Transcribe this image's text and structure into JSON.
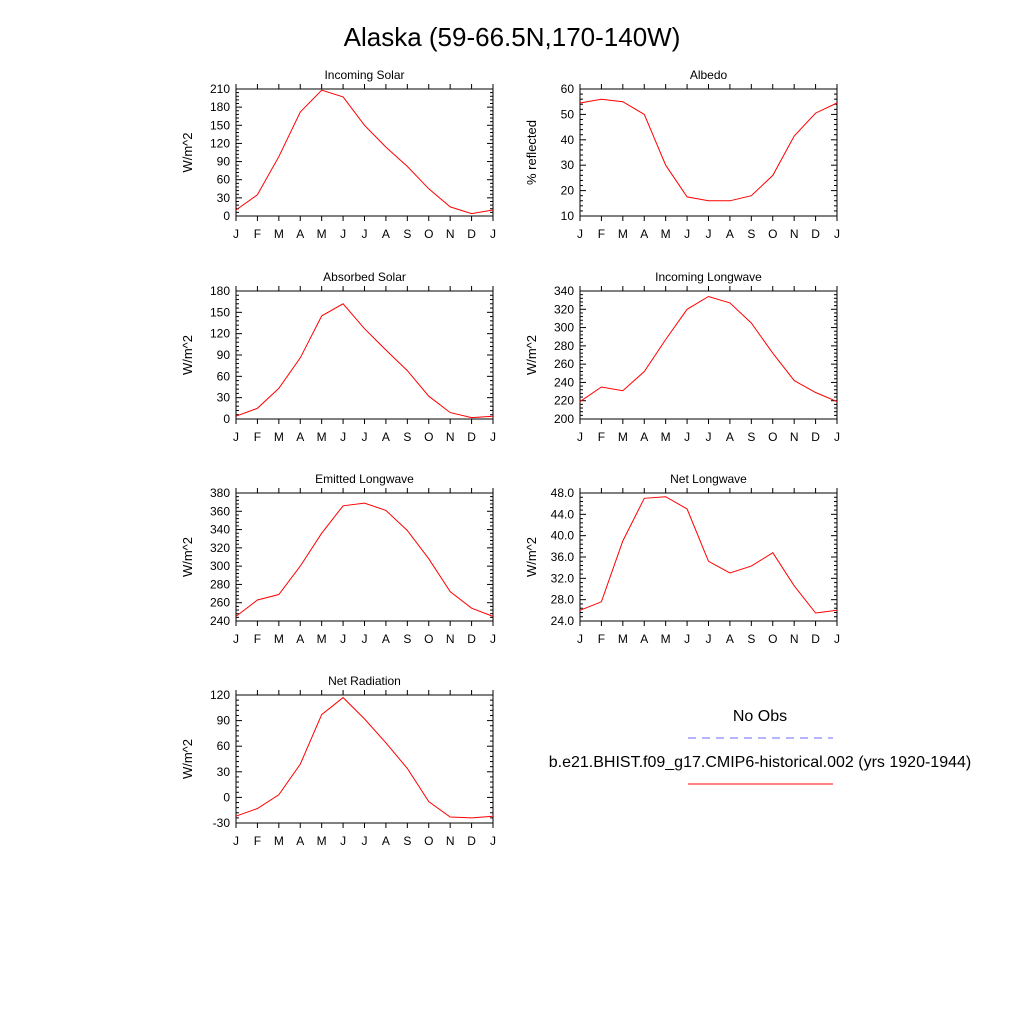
{
  "figure": {
    "title": "Alaska (59-66.5N,170-140W)",
    "legend": {
      "obs_label": "No Obs",
      "obs_color": "#6a6aff",
      "model_label": "b.e21.BHIST.f09_g17.CMIP6-historical.002 (yrs 1920-1944)",
      "model_color": "#ff0000"
    }
  },
  "chart_data": [
    {
      "type": "line",
      "title": "Incoming Solar",
      "xlabel": "",
      "ylabel": "W/m^2",
      "categories": [
        "J",
        "F",
        "M",
        "A",
        "M",
        "J",
        "J",
        "A",
        "S",
        "O",
        "N",
        "D",
        "J"
      ],
      "ylim": [
        0,
        210
      ],
      "yticks": [
        "0",
        "30",
        "60",
        "90",
        "120",
        "150",
        "180",
        "210"
      ],
      "series": [
        {
          "values": [
            10,
            35,
            98,
            172,
            208,
            197,
            150,
            114,
            82,
            45,
            15,
            4,
            10
          ]
        }
      ]
    },
    {
      "type": "line",
      "title": "Albedo",
      "xlabel": "",
      "ylabel": "% reflected",
      "categories": [
        "J",
        "F",
        "M",
        "A",
        "M",
        "J",
        "J",
        "A",
        "S",
        "O",
        "N",
        "D",
        "J"
      ],
      "ylim": [
        10,
        60
      ],
      "yticks": [
        "10",
        "20",
        "30",
        "40",
        "50",
        "60"
      ],
      "series": [
        {
          "values": [
            54.5,
            56,
            55,
            50,
            30,
            17.5,
            16,
            16,
            18,
            26,
            41.5,
            50.5,
            54.5
          ]
        }
      ]
    },
    {
      "type": "line",
      "title": "Absorbed Solar",
      "xlabel": "",
      "ylabel": "W/m^2",
      "categories": [
        "J",
        "F",
        "M",
        "A",
        "M",
        "J",
        "J",
        "A",
        "S",
        "O",
        "N",
        "D",
        "J"
      ],
      "ylim": [
        0,
        180
      ],
      "yticks": [
        "0",
        "30",
        "60",
        "90",
        "120",
        "150",
        "180"
      ],
      "series": [
        {
          "values": [
            4,
            15,
            43,
            86,
            145,
            162,
            127,
            97,
            68,
            32,
            9,
            2,
            4
          ]
        }
      ]
    },
    {
      "type": "line",
      "title": "Incoming Longwave",
      "xlabel": "",
      "ylabel": "W/m^2",
      "categories": [
        "J",
        "F",
        "M",
        "A",
        "M",
        "J",
        "J",
        "A",
        "S",
        "O",
        "N",
        "D",
        "J"
      ],
      "ylim": [
        200,
        340
      ],
      "yticks": [
        "200",
        "220",
        "240",
        "260",
        "280",
        "300",
        "320",
        "340"
      ],
      "series": [
        {
          "values": [
            219,
            235,
            231,
            252,
            287,
            320,
            334,
            327,
            305,
            272,
            242,
            229,
            219
          ]
        }
      ]
    },
    {
      "type": "line",
      "title": "Emitted Longwave",
      "xlabel": "",
      "ylabel": "W/m^2",
      "categories": [
        "J",
        "F",
        "M",
        "A",
        "M",
        "J",
        "J",
        "A",
        "S",
        "O",
        "N",
        "D",
        "J"
      ],
      "ylim": [
        240,
        380
      ],
      "yticks": [
        "240",
        "260",
        "280",
        "300",
        "320",
        "340",
        "360",
        "380"
      ],
      "series": [
        {
          "values": [
            245,
            263,
            269,
            300,
            336,
            366,
            369,
            361,
            339,
            308,
            272,
            254,
            245
          ]
        }
      ]
    },
    {
      "type": "line",
      "title": "Net Longwave",
      "xlabel": "",
      "ylabel": "W/m^2",
      "categories": [
        "J",
        "F",
        "M",
        "A",
        "M",
        "J",
        "J",
        "A",
        "S",
        "O",
        "N",
        "D",
        "J"
      ],
      "ylim": [
        24,
        48
      ],
      "yticks": [
        "24.0",
        "28.0",
        "32.0",
        "36.0",
        "40.0",
        "44.0",
        "48.0"
      ],
      "series": [
        {
          "values": [
            26,
            27.6,
            39,
            47,
            47.3,
            45,
            35.2,
            33,
            34.3,
            36.8,
            30.6,
            25.5,
            26
          ]
        }
      ]
    },
    {
      "type": "line",
      "title": "Net Radiation",
      "xlabel": "",
      "ylabel": "W/m^2",
      "categories": [
        "J",
        "F",
        "M",
        "A",
        "M",
        "J",
        "J",
        "A",
        "S",
        "O",
        "N",
        "D",
        "J"
      ],
      "ylim": [
        -30,
        120
      ],
      "yticks": [
        "-30",
        "0",
        "30",
        "60",
        "90",
        "120"
      ],
      "series": [
        {
          "values": [
            -22,
            -13,
            3,
            39,
            97,
            117,
            92,
            64,
            34,
            -5,
            -23,
            -24,
            -22
          ]
        }
      ]
    }
  ]
}
